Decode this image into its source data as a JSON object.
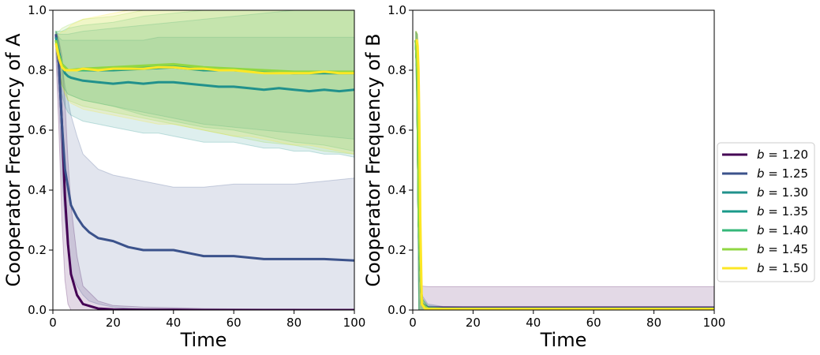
{
  "chart_data": [
    {
      "type": "line",
      "title": "",
      "xlabel": "Time",
      "ylabel": "Cooperator Frequency of A",
      "xlim": [
        0,
        100
      ],
      "ylim": [
        0,
        1
      ],
      "xticks": [
        "0",
        "20",
        "40",
        "60",
        "80",
        "100"
      ],
      "yticks": [
        "0.0",
        "0.2",
        "0.4",
        "0.6",
        "0.8",
        "1.0"
      ],
      "grid": false,
      "series": [
        {
          "name": "b = 1.20",
          "color": "#440154",
          "x": [
            1,
            2,
            3,
            4,
            5,
            6,
            8,
            10,
            15,
            20,
            30,
            40,
            50,
            60,
            70,
            80,
            90,
            100
          ],
          "y": [
            0.92,
            0.82,
            0.62,
            0.38,
            0.22,
            0.12,
            0.05,
            0.02,
            0.005,
            0.002,
            0.001,
            0.001,
            0.0,
            0.0,
            0.0,
            0.0,
            0.0,
            0.0
          ],
          "band_lo": [
            0.85,
            0.6,
            0.3,
            0.1,
            0.02,
            0.0,
            0.0,
            0.0,
            0.0,
            0.0,
            0.0,
            0.0,
            0.0,
            0.0,
            0.0,
            0.0,
            0.0,
            0.0
          ],
          "band_hi": [
            0.93,
            0.9,
            0.85,
            0.7,
            0.5,
            0.35,
            0.18,
            0.08,
            0.03,
            0.015,
            0.01,
            0.008,
            0.005,
            0.004,
            0.003,
            0.003,
            0.002,
            0.002
          ]
        },
        {
          "name": "b = 1.25",
          "color": "#3b528b",
          "x": [
            1,
            2,
            3,
            4,
            6,
            8,
            10,
            12,
            15,
            20,
            25,
            30,
            40,
            50,
            60,
            70,
            80,
            90,
            100
          ],
          "y": [
            0.92,
            0.82,
            0.62,
            0.47,
            0.35,
            0.31,
            0.28,
            0.26,
            0.24,
            0.23,
            0.21,
            0.2,
            0.2,
            0.18,
            0.18,
            0.17,
            0.17,
            0.17,
            0.165
          ],
          "band_lo": [
            0.88,
            0.7,
            0.45,
            0.3,
            0.12,
            0.08,
            0.05,
            0.03,
            0.02,
            0.01,
            0.005,
            0.003,
            0.002,
            0.001,
            0.001,
            0.001,
            0.001,
            0.001,
            0.001
          ],
          "band_hi": [
            0.93,
            0.9,
            0.82,
            0.75,
            0.65,
            0.58,
            0.52,
            0.5,
            0.47,
            0.45,
            0.44,
            0.43,
            0.41,
            0.41,
            0.42,
            0.42,
            0.42,
            0.43,
            0.44
          ]
        },
        {
          "name": "b = 1.30",
          "color": "#21918c",
          "x": [
            1,
            2,
            3,
            4,
            5,
            6,
            8,
            10,
            15,
            20,
            25,
            30,
            35,
            40,
            45,
            50,
            55,
            60,
            65,
            70,
            75,
            80,
            85,
            90,
            95,
            100
          ],
          "y": [
            0.91,
            0.86,
            0.82,
            0.79,
            0.78,
            0.775,
            0.77,
            0.765,
            0.76,
            0.755,
            0.76,
            0.755,
            0.76,
            0.76,
            0.755,
            0.75,
            0.745,
            0.745,
            0.74,
            0.735,
            0.74,
            0.735,
            0.73,
            0.735,
            0.73,
            0.735
          ],
          "band_lo": [
            0.88,
            0.8,
            0.72,
            0.68,
            0.66,
            0.65,
            0.64,
            0.63,
            0.62,
            0.61,
            0.6,
            0.59,
            0.59,
            0.58,
            0.57,
            0.56,
            0.56,
            0.56,
            0.55,
            0.54,
            0.54,
            0.53,
            0.53,
            0.52,
            0.52,
            0.51
          ],
          "band_hi": [
            0.93,
            0.91,
            0.9,
            0.9,
            0.9,
            0.9,
            0.9,
            0.9,
            0.9,
            0.9,
            0.9,
            0.9,
            0.91,
            0.91,
            0.91,
            0.91,
            0.91,
            0.91,
            0.91,
            0.91,
            0.91,
            0.91,
            0.91,
            0.91,
            0.91,
            0.91
          ]
        },
        {
          "name": "b = 1.35",
          "color": "#1a9a8a",
          "x": [
            1,
            2,
            3,
            5,
            10,
            20,
            30,
            40,
            50,
            60,
            70,
            80,
            90,
            100
          ],
          "y": [
            0.9,
            0.85,
            0.82,
            0.8,
            0.8,
            0.8,
            0.805,
            0.81,
            0.8,
            0.8,
            0.795,
            0.79,
            0.79,
            0.79
          ],
          "band_lo": [
            0.88,
            0.8,
            0.75,
            0.72,
            0.7,
            0.68,
            0.66,
            0.64,
            0.62,
            0.61,
            0.6,
            0.59,
            0.58,
            0.57
          ],
          "band_hi": [
            0.93,
            0.92,
            0.92,
            0.92,
            0.93,
            0.94,
            0.95,
            0.96,
            0.97,
            0.98,
            0.99,
            1.0,
            1.0,
            1.0
          ]
        },
        {
          "name": "b = 1.40",
          "color": "#35b779",
          "x": [
            1,
            2,
            3,
            5,
            10,
            20,
            30,
            40,
            50,
            60,
            70,
            80,
            90,
            100
          ],
          "y": [
            0.9,
            0.85,
            0.82,
            0.8,
            0.8,
            0.805,
            0.81,
            0.815,
            0.805,
            0.8,
            0.795,
            0.79,
            0.795,
            0.79
          ],
          "band_lo": [
            0.88,
            0.8,
            0.75,
            0.72,
            0.7,
            0.68,
            0.65,
            0.63,
            0.61,
            0.6,
            0.58,
            0.56,
            0.55,
            0.53
          ],
          "band_hi": [
            0.93,
            0.93,
            0.93,
            0.94,
            0.95,
            0.96,
            0.98,
            0.99,
            1.0,
            1.0,
            1.0,
            1.0,
            1.0,
            1.0
          ]
        },
        {
          "name": "b = 1.45",
          "color": "#90d743",
          "x": [
            1,
            2,
            3,
            5,
            10,
            20,
            30,
            40,
            50,
            60,
            70,
            80,
            90,
            100
          ],
          "y": [
            0.9,
            0.85,
            0.82,
            0.8,
            0.805,
            0.81,
            0.815,
            0.82,
            0.81,
            0.805,
            0.8,
            0.795,
            0.795,
            0.795
          ],
          "band_lo": [
            0.88,
            0.8,
            0.75,
            0.7,
            0.68,
            0.66,
            0.64,
            0.62,
            0.6,
            0.58,
            0.56,
            0.55,
            0.53,
            0.52
          ],
          "band_hi": [
            0.93,
            0.93,
            0.94,
            0.95,
            0.97,
            0.98,
            1.0,
            1.0,
            1.0,
            1.0,
            1.0,
            1.0,
            1.0,
            1.0
          ]
        },
        {
          "name": "b = 1.50",
          "color": "#fde725",
          "x": [
            1,
            2,
            3,
            4,
            5,
            6,
            8,
            10,
            15,
            20,
            25,
            30,
            35,
            40,
            45,
            50,
            55,
            60,
            65,
            70,
            75,
            80,
            85,
            90,
            95,
            100
          ],
          "y": [
            0.89,
            0.84,
            0.81,
            0.8,
            0.8,
            0.8,
            0.8,
            0.805,
            0.8,
            0.805,
            0.805,
            0.805,
            0.81,
            0.81,
            0.805,
            0.805,
            0.8,
            0.8,
            0.795,
            0.79,
            0.79,
            0.79,
            0.79,
            0.795,
            0.79,
            0.79
          ],
          "band_lo": [
            0.87,
            0.8,
            0.75,
            0.72,
            0.7,
            0.69,
            0.68,
            0.67,
            0.66,
            0.65,
            0.64,
            0.63,
            0.62,
            0.62,
            0.61,
            0.6,
            0.59,
            0.58,
            0.58,
            0.57,
            0.56,
            0.55,
            0.55,
            0.54,
            0.53,
            0.52
          ],
          "band_hi": [
            0.92,
            0.92,
            0.93,
            0.93,
            0.94,
            0.95,
            0.96,
            0.97,
            0.98,
            0.99,
            1.0,
            1.0,
            1.0,
            1.0,
            1.0,
            1.0,
            1.0,
            1.0,
            1.0,
            1.0,
            1.0,
            1.0,
            1.0,
            1.0,
            1.0,
            1.0
          ]
        }
      ]
    },
    {
      "type": "line",
      "title": "",
      "xlabel": "Time",
      "ylabel": "Cooperator Frequency of B",
      "xlim": [
        0,
        100
      ],
      "ylim": [
        0,
        1
      ],
      "xticks": [
        "0",
        "20",
        "40",
        "60",
        "80",
        "100"
      ],
      "yticks": [
        "0.0",
        "0.2",
        "0.4",
        "0.6",
        "0.8",
        "1.0"
      ],
      "grid": false,
      "series": [
        {
          "name": "b = 1.20",
          "color": "#440154",
          "x": [
            1,
            1.5,
            2,
            3,
            5,
            10,
            20,
            100
          ],
          "y": [
            0.9,
            0.8,
            0.3,
            0.02,
            0.008,
            0.008,
            0.008,
            0.008
          ],
          "band_lo": [
            0.85,
            0.6,
            0.0,
            0.0,
            0.0,
            0.0,
            0.0,
            0.0
          ],
          "band_hi": [
            0.93,
            0.92,
            0.55,
            0.08,
            0.078,
            0.078,
            0.078,
            0.078
          ]
        },
        {
          "name": "b = 1.25",
          "color": "#3b528b",
          "x": [
            1,
            1.5,
            2,
            3,
            5,
            10,
            20,
            100
          ],
          "y": [
            0.9,
            0.8,
            0.3,
            0.02,
            0.008,
            0.006,
            0.006,
            0.006
          ],
          "band_lo": [
            0.85,
            0.6,
            0.0,
            0.0,
            0.0,
            0.0,
            0.0,
            0.0
          ],
          "band_hi": [
            0.93,
            0.92,
            0.55,
            0.05,
            0.02,
            0.012,
            0.01,
            0.01
          ]
        },
        {
          "name": "b = 1.30",
          "color": "#21918c",
          "x": [
            1,
            1.5,
            2,
            3,
            5,
            10,
            100
          ],
          "y": [
            0.9,
            0.8,
            0.3,
            0.02,
            0.006,
            0.005,
            0.005
          ],
          "band_lo": [
            0.85,
            0.6,
            0.0,
            0.0,
            0.0,
            0.0,
            0.0
          ],
          "band_hi": [
            0.93,
            0.92,
            0.55,
            0.04,
            0.015,
            0.01,
            0.01
          ]
        },
        {
          "name": "b = 1.35",
          "color": "#1a9a8a",
          "x": [
            1,
            1.5,
            2,
            3,
            5,
            10,
            100
          ],
          "y": [
            0.9,
            0.8,
            0.3,
            0.02,
            0.005,
            0.004,
            0.004
          ],
          "band_lo": [
            0.85,
            0.6,
            0.0,
            0.0,
            0.0,
            0.0,
            0.0
          ],
          "band_hi": [
            0.93,
            0.92,
            0.55,
            0.04,
            0.012,
            0.008,
            0.008
          ]
        },
        {
          "name": "b = 1.40",
          "color": "#35b779",
          "x": [
            1,
            1.5,
            2,
            3,
            5,
            10,
            100
          ],
          "y": [
            0.9,
            0.8,
            0.3,
            0.02,
            0.005,
            0.004,
            0.004
          ],
          "band_lo": [
            0.85,
            0.6,
            0.0,
            0.0,
            0.0,
            0.0,
            0.0
          ],
          "band_hi": [
            0.93,
            0.92,
            0.55,
            0.04,
            0.012,
            0.008,
            0.008
          ]
        },
        {
          "name": "b = 1.45",
          "color": "#90d743",
          "x": [
            1,
            1.5,
            2,
            3,
            5,
            10,
            100
          ],
          "y": [
            0.9,
            0.8,
            0.3,
            0.02,
            0.005,
            0.004,
            0.004
          ],
          "band_lo": [
            0.85,
            0.6,
            0.0,
            0.0,
            0.0,
            0.0,
            0.0
          ],
          "band_hi": [
            0.93,
            0.92,
            0.55,
            0.04,
            0.012,
            0.008,
            0.008
          ]
        },
        {
          "name": "b = 1.50",
          "color": "#fde725",
          "x": [
            1,
            1.3,
            1.6,
            1.9,
            2.2,
            2.5,
            3,
            4,
            5,
            10,
            100
          ],
          "y": [
            0.9,
            0.9,
            0.88,
            0.8,
            0.6,
            0.3,
            0.02,
            0.005,
            0.004,
            0.004,
            0.004
          ],
          "band_lo": [
            0.85,
            0.85,
            0.7,
            0.4,
            0.1,
            0.0,
            0.0,
            0.0,
            0.0,
            0.0,
            0.0
          ],
          "band_hi": [
            0.93,
            0.93,
            0.92,
            0.9,
            0.8,
            0.6,
            0.05,
            0.012,
            0.008,
            0.008,
            0.008
          ]
        }
      ]
    }
  ],
  "legend": {
    "placement": "right of second axes",
    "entries": [
      {
        "prefix": "b",
        "value": " = 1.20",
        "color": "#440154"
      },
      {
        "prefix": "b",
        "value": " = 1.25",
        "color": "#3b528b"
      },
      {
        "prefix": "b",
        "value": " = 1.30",
        "color": "#21918c"
      },
      {
        "prefix": "b",
        "value": " = 1.35",
        "color": "#1a9a8a"
      },
      {
        "prefix": "b",
        "value": " = 1.40",
        "color": "#35b779"
      },
      {
        "prefix": "b",
        "value": " = 1.45",
        "color": "#90d743"
      },
      {
        "prefix": "b",
        "value": " = 1.50",
        "color": "#fde725"
      }
    ]
  }
}
